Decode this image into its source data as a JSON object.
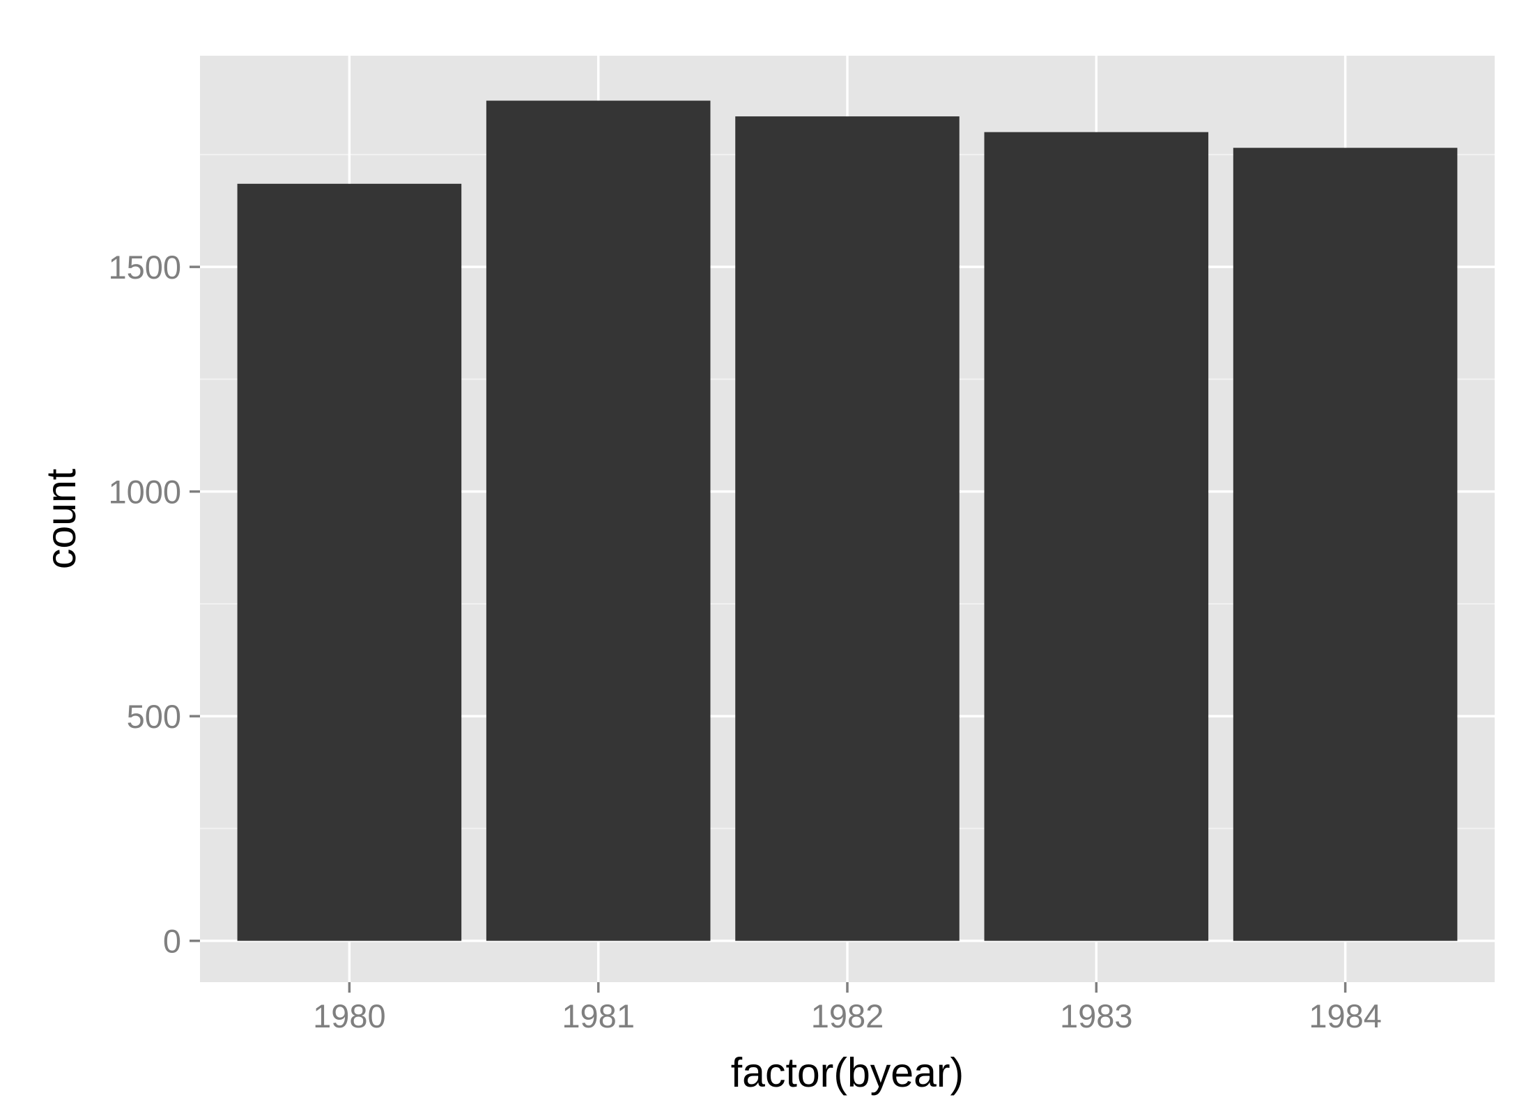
{
  "chart_data": {
    "type": "bar",
    "title": "",
    "xlabel": "factor(byear)",
    "ylabel": "count",
    "categories": [
      "1980",
      "1981",
      "1982",
      "1983",
      "1984"
    ],
    "values": [
      1685,
      1870,
      1835,
      1800,
      1765
    ],
    "ylim": [
      -92,
      1970
    ],
    "yticks": [
      0,
      500,
      1000,
      1500
    ],
    "ytick_labels": [
      "0",
      "500",
      "1000",
      "1500"
    ],
    "grid": true,
    "legend": "none",
    "colors": {
      "panel": "#e5e5e5",
      "bar": "#353535",
      "grid_major": "#ffffff",
      "grid_minor": "#f2f2f2",
      "tick_label": "#7f7f7f",
      "axis_title": "#000000"
    }
  }
}
